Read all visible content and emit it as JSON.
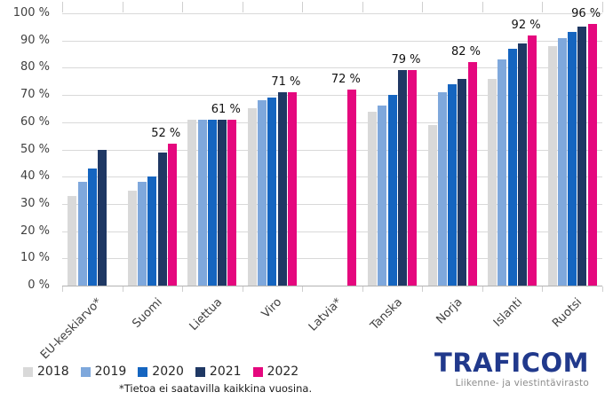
{
  "chart_data": {
    "type": "bar",
    "title": "",
    "categories": [
      "EU-keskiarvo*",
      "Suomi",
      "Liettua",
      "Viro",
      "Latvia*",
      "Tanska",
      "Norja",
      "Islanti",
      "Ruotsi"
    ],
    "series": [
      {
        "name": "2018",
        "color": "#D9D9D9",
        "values": [
          33,
          35,
          61,
          65,
          null,
          64,
          59,
          76,
          88
        ]
      },
      {
        "name": "2019",
        "color": "#7FA8DC",
        "values": [
          38,
          38,
          61,
          68,
          null,
          66,
          71,
          83,
          91
        ]
      },
      {
        "name": "2020",
        "color": "#1565C0",
        "values": [
          43,
          40,
          61,
          69,
          null,
          70,
          74,
          87,
          93
        ]
      },
      {
        "name": "2021",
        "color": "#1F3864",
        "values": [
          50,
          49,
          61,
          71,
          null,
          79,
          76,
          89,
          95
        ]
      },
      {
        "name": "2022",
        "color": "#E5087E",
        "values": [
          null,
          52,
          61,
          71,
          72,
          79,
          82,
          92,
          96
        ]
      }
    ],
    "value_labels": [
      "",
      "52 %",
      "61 %",
      "71 %",
      "72 %",
      "79 %",
      "82 %",
      "92 %",
      "96 %"
    ],
    "yticks": [
      "0 %",
      "10 %",
      "20 %",
      "30 %",
      "40 %",
      "50 %",
      "60 %",
      "70 %",
      "80 %",
      "90 %",
      "100 %"
    ],
    "ylim": [
      0,
      100
    ],
    "grid": true,
    "legend_position": "bottom-left"
  },
  "footnote": "*Tietoa ei saatavilla kaikkina vuosina.",
  "logo": {
    "brand": "TRAFICOM",
    "tagline": "Liikenne- ja viestintävirasto"
  },
  "colors": {
    "gridline": "#D9D9D9",
    "axis_line": "#B3B3B3",
    "tick_mark": "#CFCFCF",
    "axis_text": "#404040",
    "value_label_text": "#111111",
    "logo_blue": "#21398C",
    "tagline_gray": "#8C8C8C"
  }
}
